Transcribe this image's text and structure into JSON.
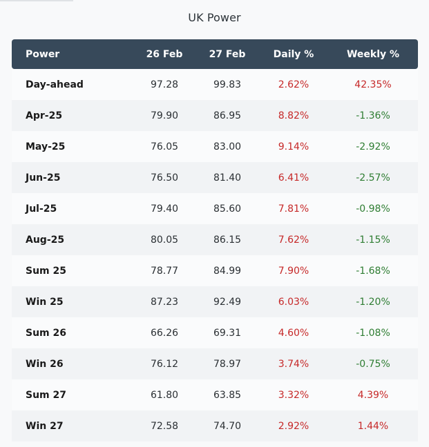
{
  "title": "UK Power",
  "columns": [
    "Power",
    "26 Feb",
    "27 Feb",
    "Daily %",
    "Weekly %"
  ],
  "colors": {
    "header_bg": "#37495a",
    "positive_change": "#c62828",
    "negative_change": "#2e7d32"
  },
  "rows": [
    {
      "name": "Day-ahead",
      "feb26": "97.28",
      "feb27": "99.83",
      "daily": "2.62%",
      "weekly": "42.35%"
    },
    {
      "name": "Apr-25",
      "feb26": "79.90",
      "feb27": "86.95",
      "daily": "8.82%",
      "weekly": "-1.36%"
    },
    {
      "name": "May-25",
      "feb26": "76.05",
      "feb27": "83.00",
      "daily": "9.14%",
      "weekly": "-2.92%"
    },
    {
      "name": "Jun-25",
      "feb26": "76.50",
      "feb27": "81.40",
      "daily": "6.41%",
      "weekly": "-2.57%"
    },
    {
      "name": "Jul-25",
      "feb26": "79.40",
      "feb27": "85.60",
      "daily": "7.81%",
      "weekly": "-0.98%"
    },
    {
      "name": "Aug-25",
      "feb26": "80.05",
      "feb27": "86.15",
      "daily": "7.62%",
      "weekly": "-1.15%"
    },
    {
      "name": "Sum 25",
      "feb26": "78.77",
      "feb27": "84.99",
      "daily": "7.90%",
      "weekly": "-1.68%"
    },
    {
      "name": "Win 25",
      "feb26": "87.23",
      "feb27": "92.49",
      "daily": "6.03%",
      "weekly": "-1.20%"
    },
    {
      "name": "Sum 26",
      "feb26": "66.26",
      "feb27": "69.31",
      "daily": "4.60%",
      "weekly": "-1.08%"
    },
    {
      "name": "Win 26",
      "feb26": "76.12",
      "feb27": "78.97",
      "daily": "3.74%",
      "weekly": "-0.75%"
    },
    {
      "name": "Sum 27",
      "feb26": "61.80",
      "feb27": "63.85",
      "daily": "3.32%",
      "weekly": "4.39%"
    },
    {
      "name": "Win 27",
      "feb26": "72.58",
      "feb27": "74.70",
      "daily": "2.92%",
      "weekly": "1.44%"
    }
  ]
}
